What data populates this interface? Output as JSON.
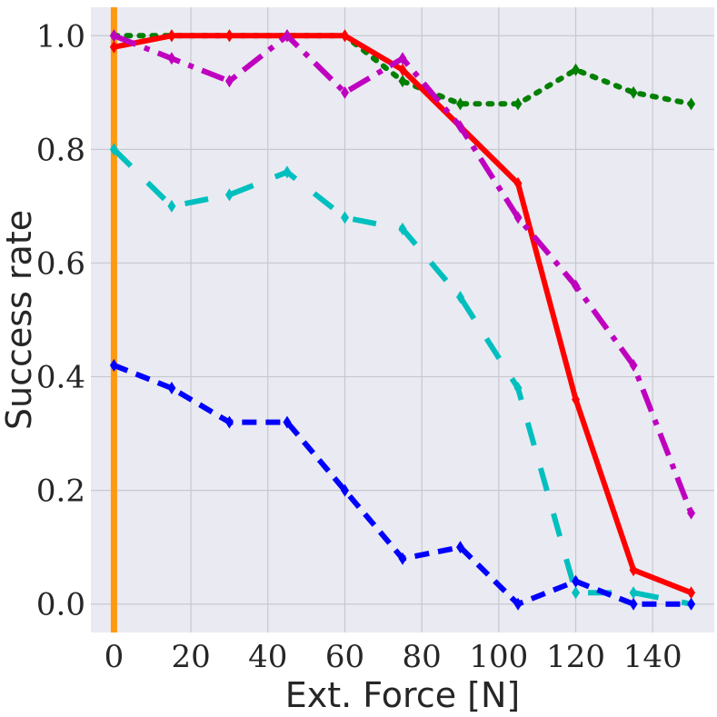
{
  "chart_data": {
    "type": "line",
    "title": "",
    "xlabel": "Ext. Force [N]",
    "ylabel": "Success rate",
    "xlim": [
      -6,
      156
    ],
    "ylim": [
      -0.05,
      1.05
    ],
    "xticks": [
      0,
      20,
      40,
      60,
      80,
      100,
      120,
      140
    ],
    "yticks": [
      0.0,
      0.2,
      0.4,
      0.6,
      0.8,
      1.0
    ],
    "xtick_labels": [
      "0",
      "20",
      "40",
      "60",
      "80",
      "100",
      "120",
      "140"
    ],
    "ytick_labels": [
      "0.0",
      "0.2",
      "0.4",
      "0.6",
      "0.8",
      "1.0"
    ],
    "grid": true,
    "background": "#eaeaf2",
    "vline": {
      "x": 0,
      "color": "#ff9910"
    },
    "x": [
      0,
      15,
      30,
      45,
      60,
      75,
      90,
      105,
      120,
      135,
      150
    ],
    "series": [
      {
        "color": "#008000",
        "style": "dotted",
        "values": [
          1.0,
          1.0,
          1.0,
          1.0,
          1.0,
          0.92,
          0.88,
          0.88,
          0.94,
          0.9,
          0.88
        ]
      },
      {
        "color": "#ff0000",
        "style": "solid",
        "values": [
          0.98,
          1.0,
          1.0,
          1.0,
          1.0,
          0.94,
          0.84,
          0.74,
          0.36,
          0.06,
          0.02
        ]
      },
      {
        "color": "#bf00bf",
        "style": "dashdot",
        "values": [
          1.0,
          0.96,
          0.92,
          1.0,
          0.9,
          0.96,
          0.84,
          0.68,
          0.56,
          0.42,
          0.16
        ]
      },
      {
        "color": "#00bfbf",
        "style": "longdash",
        "values": [
          0.8,
          0.7,
          0.72,
          0.76,
          0.68,
          0.66,
          0.54,
          0.38,
          0.02,
          0.02,
          0.0
        ]
      },
      {
        "color": "#0000ff",
        "style": "dashed",
        "values": [
          0.42,
          0.38,
          0.32,
          0.32,
          0.2,
          0.08,
          0.1,
          0.0,
          0.04,
          0.0,
          0.0
        ]
      }
    ]
  }
}
